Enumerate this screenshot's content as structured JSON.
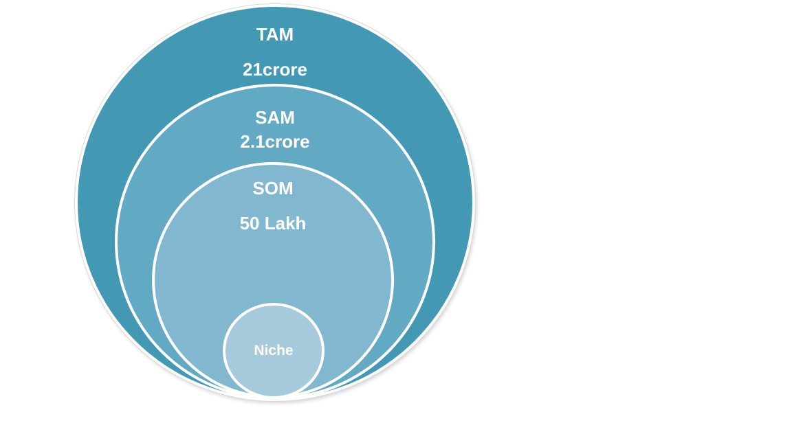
{
  "colors": {
    "tam": "#4399b3",
    "sam": "#62aac4",
    "som": "#82b8cf",
    "niche": "#a6cadb",
    "border": "#ffffff",
    "text": "#ffffff"
  },
  "tam": {
    "label": "TAM",
    "value": "21crore"
  },
  "sam": {
    "label": "SAM",
    "value": "2.1crore"
  },
  "som": {
    "label": "SOM",
    "value": "50 Lakh"
  },
  "niche": {
    "label": "Niche"
  }
}
